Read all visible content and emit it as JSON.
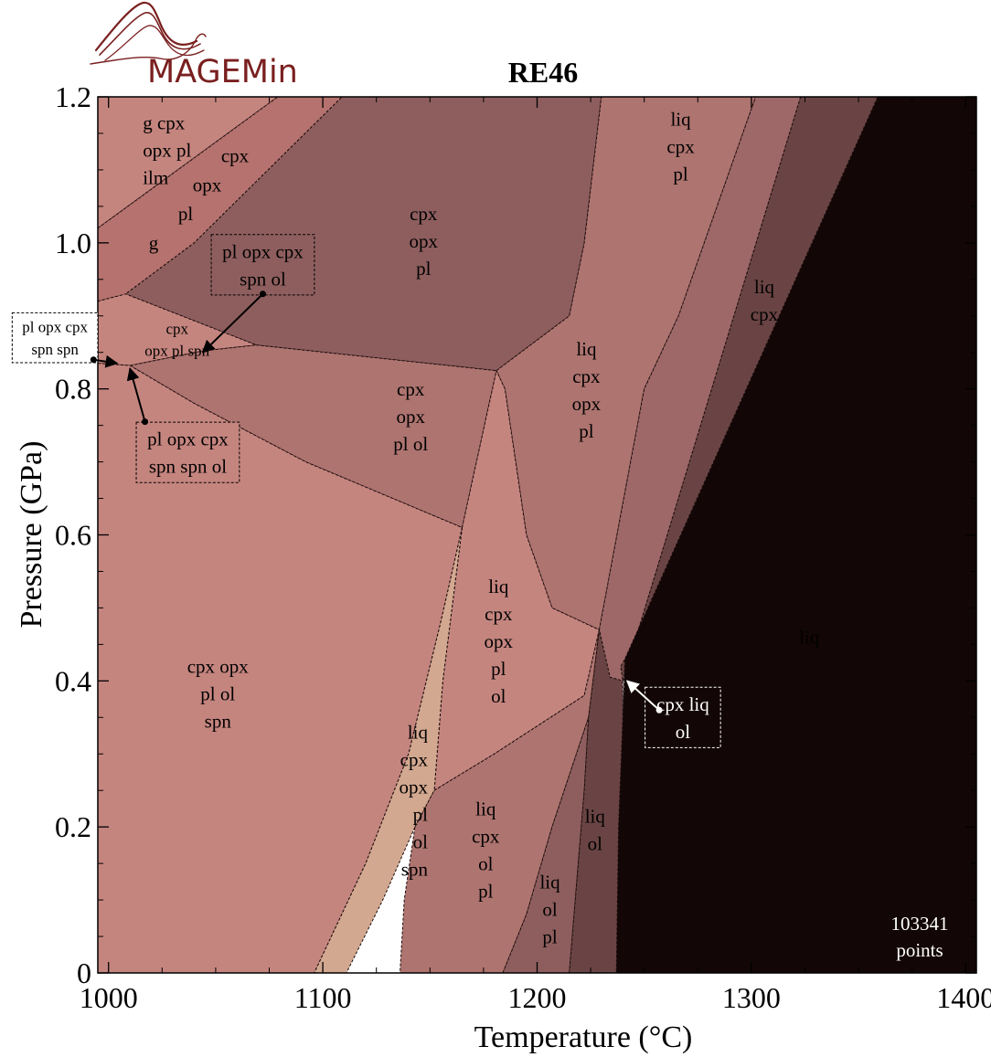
{
  "logo": {
    "text": "MAGEMin"
  },
  "chart_data": {
    "type": "phase-diagram",
    "title": "RE46",
    "xlabel": "Temperature (°C)",
    "ylabel": "Pressure (GPa)",
    "xlim": [
      995,
      1405
    ],
    "ylim": [
      0,
      1.2
    ],
    "xticks": [
      1000,
      1100,
      1200,
      1300,
      1400
    ],
    "xtick_labels": [
      "1000",
      "1100",
      "1200",
      "1300",
      "1400"
    ],
    "yticks": [
      0,
      0.2,
      0.4,
      0.6,
      0.8,
      1.0,
      1.2
    ],
    "ytick_labels": [
      "0",
      "0.2",
      "0.4",
      "0.6",
      "0.8",
      "1.0",
      "1.2"
    ],
    "points_note": [
      "103341",
      "points"
    ],
    "fields": [
      {
        "id": "f-g-cpx-opx-pl-ilm",
        "lines": [
          "g cpx",
          "opx pl",
          "ilm"
        ],
        "color": "#c5857f",
        "polygon": [
          [
            995,
            1.2
          ],
          [
            1079,
            1.2
          ],
          [
            995,
            1.02
          ]
        ]
      },
      {
        "id": "f-g",
        "lines": [
          "g"
        ],
        "color": "#b5726e",
        "polygon": [
          [
            995,
            1.02
          ],
          [
            1079,
            1.2
          ],
          [
            1109,
            1.2
          ],
          [
            1040,
            1.0
          ],
          [
            1008,
            0.93
          ],
          [
            995,
            0.92
          ]
        ]
      },
      {
        "id": "f-cpx-opx-pl-top",
        "lines": [
          "cpx",
          "opx",
          "pl"
        ],
        "color": "#8e5e5e",
        "polygon": [
          [
            1109,
            1.2
          ],
          [
            1230,
            1.2
          ],
          [
            1222,
            1.0
          ],
          [
            1215,
            0.9
          ],
          [
            1181,
            0.825
          ],
          [
            1069,
            0.86
          ],
          [
            1008,
            0.93
          ],
          [
            1040,
            1.0
          ]
        ]
      },
      {
        "id": "f-liq-cpx-opx-pl-upper",
        "lines": [
          "liq",
          "cpx",
          "opx",
          "pl"
        ],
        "color": "#ae7470",
        "polygon": [
          [
            1230,
            1.2
          ],
          [
            1302,
            1.2
          ],
          [
            1266,
            0.9
          ],
          [
            1250,
            0.8
          ],
          [
            1229,
            0.47
          ],
          [
            1207,
            0.5
          ],
          [
            1195,
            0.6
          ],
          [
            1185,
            0.8
          ],
          [
            1181,
            0.825
          ],
          [
            1215,
            0.9
          ],
          [
            1222,
            1.0
          ]
        ]
      },
      {
        "id": "f-liq-cpx-pl",
        "lines": [
          "liq",
          "cpx",
          "pl"
        ],
        "color": "#9e6868",
        "polygon": [
          [
            1302,
            1.2
          ],
          [
            1323,
            1.2
          ],
          [
            1240,
            0.4
          ],
          [
            1234,
            0.405
          ],
          [
            1229,
            0.47
          ],
          [
            1250,
            0.8
          ],
          [
            1266,
            0.9
          ]
        ]
      },
      {
        "id": "f-liq-cpx",
        "lines": [
          "liq",
          "cpx"
        ],
        "color": "#6a4444",
        "polygon": [
          [
            1323,
            1.2
          ],
          [
            1359,
            1.2
          ],
          [
            1241,
            0.43
          ],
          [
            1239,
            0.42
          ],
          [
            1240,
            0.4
          ]
        ]
      },
      {
        "id": "f-liq",
        "lines": [
          "liq"
        ],
        "color": "#130606",
        "polygon": [
          [
            1359,
            1.2
          ],
          [
            1405,
            1.2
          ],
          [
            1405,
            0
          ],
          [
            1237,
            0
          ],
          [
            1238,
            0.2
          ],
          [
            1240,
            0.35
          ],
          [
            1241,
            0.43
          ]
        ]
      },
      {
        "id": "f-cpx-opx-pl-spn",
        "lines": [
          "cpx",
          "opx pl spn"
        ],
        "color": "#c5857f",
        "polygon": [
          [
            995,
            0.92
          ],
          [
            1008,
            0.93
          ],
          [
            1069,
            0.86
          ],
          [
            1044,
            0.852
          ],
          [
            1010,
            0.832
          ],
          [
            995,
            0.835
          ]
        ]
      },
      {
        "id": "f-cpx-opx-pl-ol",
        "lines": [
          "cpx",
          "opx",
          "pl ol"
        ],
        "color": "#ae7470",
        "polygon": [
          [
            1069,
            0.86
          ],
          [
            1181,
            0.825
          ],
          [
            1165,
            0.61
          ],
          [
            1092,
            0.7
          ],
          [
            1040,
            0.78
          ],
          [
            1010,
            0.832
          ],
          [
            1044,
            0.852
          ]
        ]
      },
      {
        "id": "f-cpx-opx-pl-ol-spn",
        "lines": [
          "cpx opx",
          "pl ol",
          "spn"
        ],
        "color": "#c5857f",
        "polygon": [
          [
            995,
            0.835
          ],
          [
            1010,
            0.832
          ],
          [
            1040,
            0.78
          ],
          [
            1092,
            0.7
          ],
          [
            1165,
            0.61
          ],
          [
            1155,
            0.48
          ],
          [
            1140,
            0.3
          ],
          [
            1120,
            0.15
          ],
          [
            1096,
            0
          ],
          [
            995,
            0
          ]
        ]
      },
      {
        "id": "f-liq-cpx-opx-pl-ol",
        "lines": [
          "liq",
          "cpx",
          "opx",
          "pl",
          "ol"
        ],
        "color": "#c5857f",
        "polygon": [
          [
            1165,
            0.61
          ],
          [
            1181,
            0.825
          ],
          [
            1185,
            0.8
          ],
          [
            1195,
            0.6
          ],
          [
            1207,
            0.5
          ],
          [
            1229,
            0.47
          ],
          [
            1222,
            0.38
          ],
          [
            1180,
            0.3
          ],
          [
            1152,
            0.25
          ],
          [
            1156,
            0.4
          ]
        ]
      },
      {
        "id": "f-liq-cpx-opx-pl-ol-spn",
        "lines": [
          "liq",
          "cpx",
          "opx",
          "pl",
          "ol",
          "spn"
        ],
        "color": "#d3a890",
        "polygon": [
          [
            1165,
            0.61
          ],
          [
            1156,
            0.4
          ],
          [
            1152,
            0.25
          ],
          [
            1143,
            0.2
          ],
          [
            1128,
            0.1
          ],
          [
            1111,
            0
          ],
          [
            1096,
            0
          ],
          [
            1120,
            0.15
          ],
          [
            1140,
            0.3
          ],
          [
            1155,
            0.48
          ]
        ]
      },
      {
        "id": "f-liq-cpx-ol-pl",
        "lines": [
          "liq",
          "cpx",
          "ol",
          "pl"
        ],
        "color": "#ae7470",
        "polygon": [
          [
            1143,
            0.2
          ],
          [
            1152,
            0.25
          ],
          [
            1180,
            0.3
          ],
          [
            1222,
            0.38
          ],
          [
            1229,
            0.47
          ],
          [
            1224,
            0.35
          ],
          [
            1207,
            0.2
          ],
          [
            1195,
            0.08
          ],
          [
            1184,
            0
          ],
          [
            1136,
            0
          ],
          [
            1138,
            0.1
          ]
        ]
      },
      {
        "id": "f-liq-ol-pl",
        "lines": [
          "liq",
          "ol",
          "pl"
        ],
        "color": "#8e5e5e",
        "polygon": [
          [
            1184,
            0
          ],
          [
            1195,
            0.08
          ],
          [
            1207,
            0.2
          ],
          [
            1224,
            0.35
          ],
          [
            1222,
            0.25
          ],
          [
            1215,
            0
          ]
        ]
      },
      {
        "id": "f-liq-ol",
        "lines": [
          "liq",
          "ol"
        ],
        "color": "#6a4444",
        "polygon": [
          [
            1215,
            0
          ],
          [
            1222,
            0.25
          ],
          [
            1224,
            0.35
          ],
          [
            1229,
            0.47
          ],
          [
            1234,
            0.405
          ],
          [
            1240,
            0.4
          ],
          [
            1240,
            0.35
          ],
          [
            1238,
            0.2
          ],
          [
            1237,
            0
          ]
        ]
      }
    ],
    "labels": [
      {
        "for": "f-g-cpx-opx-pl-ilm",
        "lines": [
          "g cpx",
          "opx pl",
          "ilm"
        ],
        "x": 1016,
        "y": 1.165,
        "anchor": "start",
        "color": "#000000"
      },
      {
        "for": "f-g",
        "lines": [
          "g"
        ],
        "x": 1021,
        "y": 1.0,
        "anchor": "middle",
        "color": "#000000"
      },
      {
        "for": "diag",
        "lines": [
          "cpx"
        ],
        "x": 1059,
        "y": 1.12,
        "anchor": "middle",
        "color": "#000000"
      },
      {
        "for": "diag",
        "lines": [
          "opx"
        ],
        "x": 1046,
        "y": 1.08,
        "anchor": "middle",
        "color": "#000000"
      },
      {
        "for": "diag",
        "lines": [
          "pl"
        ],
        "x": 1036,
        "y": 1.04,
        "anchor": "middle",
        "color": "#000000"
      },
      {
        "for": "f-cpx-opx-pl-top",
        "lines": [
          "cpx",
          "opx",
          "pl"
        ],
        "x": 1147,
        "y": 1.04,
        "anchor": "middle",
        "color": "#000000"
      },
      {
        "for": "f-liq-cpx-pl",
        "lines": [
          "liq",
          "cpx",
          "pl"
        ],
        "x": 1267,
        "y": 1.17,
        "anchor": "middle",
        "color": "#000000"
      },
      {
        "for": "f-liq-cpx",
        "lines": [
          "liq",
          "cpx"
        ],
        "x": 1306,
        "y": 0.94,
        "anchor": "middle",
        "color": "#000000"
      },
      {
        "for": "f-liq-cpx-opx-pl-upper",
        "lines": [
          "liq",
          "cpx",
          "opx",
          "pl"
        ],
        "x": 1223,
        "y": 0.855,
        "anchor": "middle",
        "color": "#000000"
      },
      {
        "for": "f-cpx-opx-pl-ol",
        "lines": [
          "cpx",
          "opx",
          "pl ol"
        ],
        "x": 1141,
        "y": 0.8,
        "anchor": "middle",
        "color": "#000000"
      },
      {
        "for": "f-cpx-opx-pl-spn",
        "lines": [
          "cpx",
          "opx pl spn"
        ],
        "x": 1032,
        "y": 0.883,
        "anchor": "middle",
        "color": "#000000",
        "small": true
      },
      {
        "for": "f-liq",
        "lines": [
          "liq"
        ],
        "x": 1327,
        "y": 0.46,
        "anchor": "middle",
        "color": "#000000"
      },
      {
        "for": "f-cpx-opx-pl-ol-spn",
        "lines": [
          "cpx opx",
          "pl ol",
          "spn"
        ],
        "x": 1051,
        "y": 0.42,
        "anchor": "middle",
        "color": "#000000"
      },
      {
        "for": "f-liq-cpx-opx-pl-ol",
        "lines": [
          "liq",
          "cpx",
          "opx",
          "pl",
          "ol"
        ],
        "x": 1182,
        "y": 0.53,
        "anchor": "middle",
        "color": "#000000"
      },
      {
        "for": "f-liq-cpx-opx-pl-ol-spn",
        "lines": [
          "liq",
          "cpx",
          "opx",
          "pl",
          "ol",
          "spn"
        ],
        "x": 1149,
        "y": 0.33,
        "anchor": "end",
        "color": "#000000"
      },
      {
        "for": "f-liq-cpx-ol-pl",
        "lines": [
          "liq",
          "cpx",
          "ol",
          "pl"
        ],
        "x": 1176,
        "y": 0.225,
        "anchor": "middle",
        "color": "#000000"
      },
      {
        "for": "f-liq-ol-pl",
        "lines": [
          "liq",
          "ol",
          "pl"
        ],
        "x": 1206,
        "y": 0.125,
        "anchor": "middle",
        "color": "#000000"
      },
      {
        "for": "f-liq-ol",
        "lines": [
          "liq",
          "ol"
        ],
        "x": 1227,
        "y": 0.215,
        "anchor": "middle",
        "color": "#000000"
      }
    ],
    "callouts": [
      {
        "lines": [
          "pl opx cpx",
          "spn ol"
        ],
        "box_center": [
          1072,
          0.97
        ],
        "dot": [
          1072,
          0.93
        ],
        "arrow_to": [
          1044,
          0.85
        ],
        "color": "#000000",
        "box_fill": "#8e5e5e"
      },
      {
        "lines": [
          "pl opx cpx",
          "spn spn"
        ],
        "box_center": [
          975,
          0.87
        ],
        "dot": [
          993,
          0.84
        ],
        "arrow_to": [
          1004,
          0.835
        ],
        "color": "#000000",
        "box_fill": "#ffffff"
      },
      {
        "lines": [
          "pl opx cpx",
          "spn spn ol"
        ],
        "box_center": [
          1037,
          0.713
        ],
        "dot": [
          1017,
          0.755
        ],
        "arrow_to": [
          1010,
          0.828
        ],
        "color": "#000000",
        "box_fill": "#c5857f"
      },
      {
        "lines": [
          "cpx liq",
          "ol"
        ],
        "box_center": [
          1268,
          0.35
        ],
        "dot": [
          1257,
          0.36
        ],
        "arrow_to": [
          1242,
          0.4
        ],
        "color": "#ffffff",
        "box_fill": "#130606"
      }
    ]
  }
}
